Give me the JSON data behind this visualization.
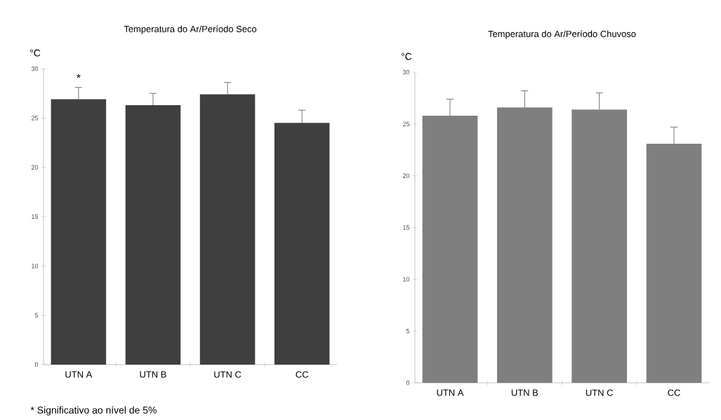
{
  "chart_data": [
    {
      "type": "bar",
      "title": "Temperatura do Ar/Período Seco",
      "ylabel": "°C",
      "categories": [
        "UTN A",
        "UTN B",
        "UTN C",
        "CC"
      ],
      "values": [
        26.9,
        26.3,
        27.4,
        24.5
      ],
      "color": "#3f3f3f",
      "errors": [
        [
          26.9,
          28.1
        ],
        [
          26.3,
          27.5
        ],
        [
          27.4,
          28.6
        ],
        [
          24.5,
          25.8
        ]
      ],
      "ylim": [
        0,
        30
      ],
      "yticks": [
        0,
        5,
        10,
        15,
        20,
        25,
        30
      ],
      "annotations": [
        "*",
        "* Significativo ao nível de 5%"
      ]
    },
    {
      "type": "bar",
      "title": "Temperatura do Ar/Período Chuvoso",
      "ylabel": "°C",
      "categories": [
        "UTN A",
        "UTN B",
        "UTN C",
        "CC"
      ],
      "values": [
        25.8,
        26.6,
        26.4,
        23.1
      ],
      "color": "#7f7f7f",
      "errors": [
        [
          25.8,
          27.4
        ],
        [
          26.6,
          28.2
        ],
        [
          26.4,
          28.0
        ],
        [
          23.1,
          24.7
        ]
      ],
      "ylim": [
        0,
        30
      ],
      "yticks": [
        0,
        5,
        10,
        15,
        20,
        25,
        30
      ]
    }
  ]
}
